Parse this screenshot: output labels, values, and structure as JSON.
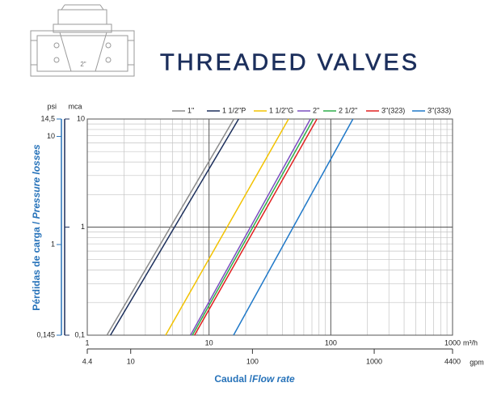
{
  "illustration": {
    "label": "2\""
  },
  "chart_data": {
    "type": "line",
    "title": "THREADED VALVES",
    "xunit": "m³/h",
    "x2unit": "gpm",
    "yunit": "mca",
    "y2unit": "psi",
    "xlabel": {
      "es": "Caudal /",
      "en": "Flow rate"
    },
    "ylabel": {
      "es": "Pérdidas de carga /",
      "en": "Pressure losses"
    },
    "xscale": "log",
    "yscale": "log",
    "grid": true,
    "legend": "top",
    "xlim": [
      1,
      1000
    ],
    "xticks": [
      1,
      10,
      100,
      1000
    ],
    "x_minor_ticks": [
      2,
      3,
      4,
      5,
      6,
      7,
      8,
      9,
      20,
      30,
      40,
      50,
      60,
      70,
      80,
      90,
      200,
      300,
      400,
      500,
      600,
      700,
      800,
      900
    ],
    "x2lim": [
      4.4,
      4400
    ],
    "x2ticks": [
      4.4,
      10,
      100,
      1000,
      4400
    ],
    "ylim": [
      0.1,
      10
    ],
    "yticks": [
      {
        "value": 0.1,
        "label": "0,1"
      },
      1,
      10
    ],
    "y_minor_ticks": [
      0.2,
      0.3,
      0.4,
      0.5,
      0.6,
      0.7,
      0.8,
      0.9,
      2,
      3,
      4,
      5,
      6,
      7,
      8,
      9
    ],
    "y2lim": [
      0.145,
      14.5
    ],
    "y2ticks": [
      {
        "value": 0.145,
        "label": "0,145"
      },
      1,
      10,
      {
        "value": 14.5,
        "label": "14,5"
      }
    ],
    "series": [
      {
        "name": "1\"",
        "color": "#8a8a8a",
        "x": [
          1.45,
          16
        ],
        "values": [
          0.1,
          10
        ]
      },
      {
        "name": "1 1/2\"P",
        "color": "#1c2f5c",
        "x": [
          1.55,
          17.5
        ],
        "values": [
          0.1,
          10
        ]
      },
      {
        "name": "1 1/2\"G",
        "color": "#f2c200",
        "x": [
          4.4,
          45
        ],
        "values": [
          0.1,
          10
        ]
      },
      {
        "name": "2\"",
        "color": "#7b4fc0",
        "x": [
          7.05,
          68
        ],
        "values": [
          0.1,
          10
        ]
      },
      {
        "name": "2 1/2\"",
        "color": "#2fae4a",
        "x": [
          7.3,
          72
        ],
        "values": [
          0.1,
          10
        ]
      },
      {
        "name": "3\"(323)",
        "color": "#e02020",
        "x": [
          7.6,
          77
        ],
        "values": [
          0.1,
          10
        ]
      },
      {
        "name": "3\"(333)",
        "color": "#1f78c8",
        "x": [
          15.9,
          152
        ],
        "values": [
          0.1,
          10
        ]
      }
    ]
  }
}
